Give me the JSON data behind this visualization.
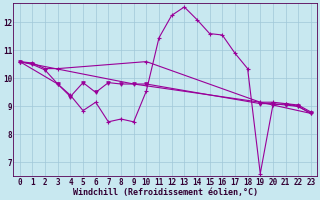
{
  "background_color": "#c8e8f0",
  "grid_color": "#a0c8d8",
  "line_color": "#990099",
  "xlabel": "Windchill (Refroidissement éolien,°C)",
  "xlabel_color": "#330033",
  "xlabel_fontsize": 6.0,
  "xlim": [
    -0.5,
    23.5
  ],
  "ylim": [
    6.5,
    12.7
  ],
  "yticks": [
    7,
    8,
    9,
    10,
    11,
    12
  ],
  "xticks": [
    0,
    1,
    2,
    3,
    4,
    5,
    6,
    7,
    8,
    9,
    10,
    11,
    12,
    13,
    14,
    15,
    16,
    17,
    18,
    19,
    20,
    21,
    22,
    23
  ],
  "line1_x": [
    0,
    1,
    2,
    3,
    10,
    19,
    20,
    21,
    22,
    23
  ],
  "line1_y": [
    10.6,
    10.55,
    10.35,
    10.35,
    10.6,
    9.15,
    9.15,
    9.1,
    9.05,
    8.8
  ],
  "line2_x": [
    0,
    3,
    4,
    5,
    6,
    7,
    8,
    9,
    10,
    11,
    12,
    13,
    14,
    15,
    16,
    17,
    18,
    19,
    20,
    21,
    22,
    23
  ],
  "line2_y": [
    10.6,
    9.8,
    9.4,
    8.85,
    9.15,
    8.45,
    8.55,
    8.45,
    9.55,
    11.45,
    12.25,
    12.55,
    12.1,
    11.6,
    11.55,
    10.9,
    10.35,
    6.6,
    9.05,
    9.1,
    9.0,
    8.75
  ],
  "line3_x": [
    0,
    1,
    2,
    3,
    4,
    5,
    6,
    7,
    8,
    9,
    10,
    19,
    20,
    21,
    22,
    23
  ],
  "line3_y": [
    10.6,
    10.5,
    10.3,
    9.8,
    9.35,
    9.85,
    9.5,
    9.85,
    9.8,
    9.8,
    9.8,
    9.1,
    9.1,
    9.05,
    9.0,
    8.75
  ],
  "line4_x": [
    0,
    9,
    19,
    23
  ],
  "line4_y": [
    10.6,
    9.8,
    9.15,
    8.75
  ]
}
